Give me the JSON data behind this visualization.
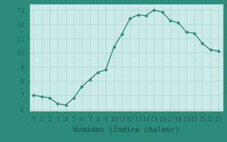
{
  "x": [
    0,
    1,
    2,
    3,
    4,
    5,
    6,
    7,
    8,
    9,
    10,
    11,
    12,
    13,
    14,
    15,
    16,
    17,
    18,
    19,
    20,
    21,
    22,
    23
  ],
  "y": [
    7.0,
    6.9,
    6.8,
    6.4,
    6.3,
    6.8,
    7.6,
    8.1,
    8.6,
    8.8,
    10.4,
    11.3,
    12.4,
    12.65,
    12.6,
    13.0,
    12.85,
    12.25,
    12.1,
    11.45,
    11.35,
    10.65,
    10.2,
    10.1
  ],
  "xlabel": "Humidex (Indice chaleur)",
  "ylim": [
    5.9,
    13.4
  ],
  "xlim": [
    -0.5,
    23.5
  ],
  "yticks": [
    6,
    7,
    8,
    9,
    10,
    11,
    12,
    13
  ],
  "xticks": [
    0,
    1,
    2,
    3,
    4,
    5,
    6,
    7,
    8,
    9,
    10,
    11,
    12,
    13,
    14,
    15,
    16,
    17,
    18,
    19,
    20,
    21,
    22,
    23
  ],
  "line_color": "#2d8b7a",
  "marker_color": "#2d8b7a",
  "axes_bg": "#cceae7",
  "fig_bg": "#2d8b7a",
  "grid_color": "#aad4d0",
  "tick_label_fontsize": 6.0,
  "xlabel_fontsize": 7.5,
  "linewidth": 1.0,
  "markersize": 2.5
}
